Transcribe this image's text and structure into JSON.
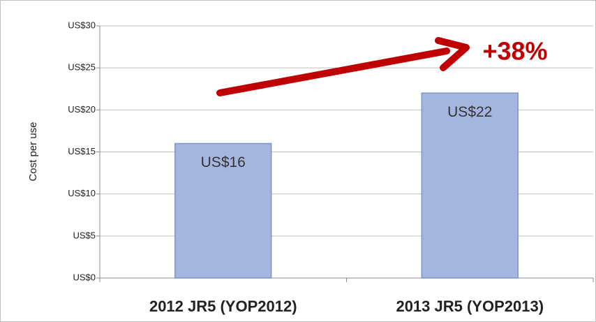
{
  "chart_data": {
    "type": "bar",
    "y_label": "Cost per use",
    "annotation": "+38%",
    "categories": [
      "2012 JR5 (YOP2012)",
      "2013 JR5 (YOP2013)"
    ],
    "values": [
      16,
      22
    ],
    "value_labels": [
      "US$16",
      "US$22"
    ],
    "color": "#a4b6e0",
    "ylim": [
      0,
      30
    ],
    "yticks": [
      {
        "value": 0,
        "label": "US$0"
      },
      {
        "value": 5,
        "label": "US$5"
      },
      {
        "value": 10,
        "label": "US$10"
      },
      {
        "value": 15,
        "label": "US$15"
      },
      {
        "value": 20,
        "label": "US$20"
      },
      {
        "value": 25,
        "label": "US$25"
      },
      {
        "value": 30,
        "label": "US$30"
      }
    ],
    "grid": true
  }
}
